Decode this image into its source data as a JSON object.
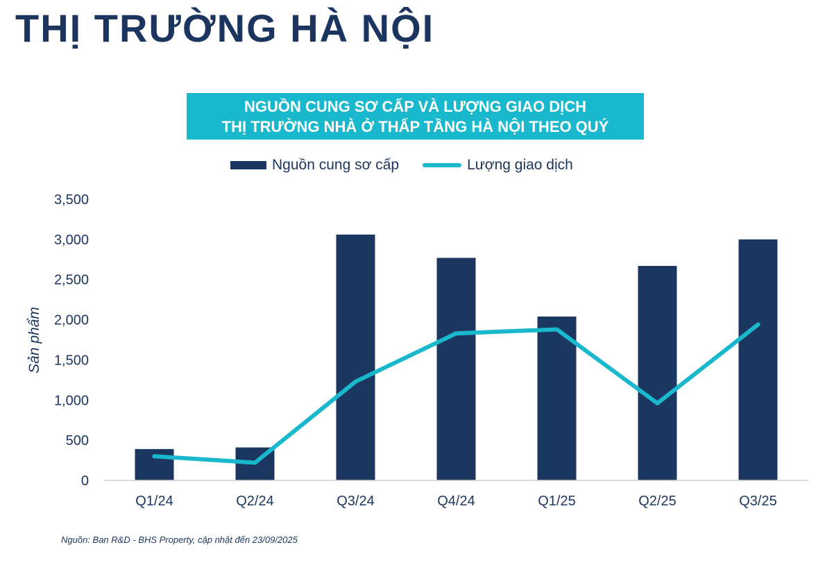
{
  "page": {
    "title": "THỊ TRƯỜNG HÀ NỘI",
    "source_note": "Nguồn: Ban R&D - BHS Property, cập nhật đến 23/09/2025"
  },
  "colors": {
    "title": "#1b355e",
    "bar": "#1b365f",
    "line": "#19b8cc",
    "title_box": "#19b8cc",
    "axis_text": "#1b355e"
  },
  "chart_data": {
    "type": "bar",
    "title_line1": "NGUỒN CUNG SƠ CẤP VÀ LƯỢNG GIAO DỊCH",
    "title_line2": "THỊ TRƯỜNG NHÀ Ở THẤP TẦNG HÀ NỘI THEO QUÝ",
    "ylabel": "Sản phẩm",
    "xlabel": "",
    "ylim": [
      0,
      3500
    ],
    "yticks": [
      0,
      500,
      1000,
      1500,
      2000,
      2500,
      3000,
      3500
    ],
    "ytick_labels": [
      "0",
      "500",
      "1,000",
      "1,500",
      "2,000",
      "2,500",
      "3,000",
      "3,500"
    ],
    "categories": [
      "Q1/24",
      "Q2/24",
      "Q3/24",
      "Q4/24",
      "Q1/25",
      "Q2/25",
      "Q3/25"
    ],
    "legend_position": "top",
    "grid": false,
    "series": [
      {
        "name": "Nguồn cung sơ cấp",
        "type": "bar",
        "values": [
          390,
          410,
          3060,
          2770,
          2040,
          2670,
          3000
        ]
      },
      {
        "name": "Lượng giao dịch",
        "type": "line",
        "values": [
          300,
          220,
          1230,
          1830,
          1880,
          960,
          1940
        ]
      }
    ]
  }
}
